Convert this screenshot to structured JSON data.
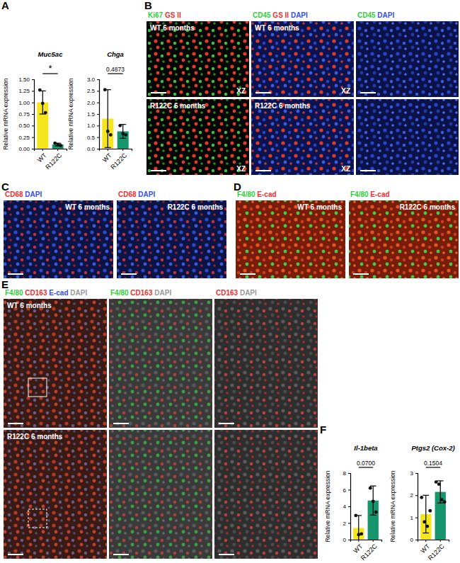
{
  "chart_data": [
    {
      "type": "bar",
      "title": "Muc5ac",
      "ylabel": "Relative mRNA expression",
      "categories": [
        "WT",
        "R122C"
      ],
      "values": [
        1.0,
        0.09
      ],
      "errors": [
        0.25,
        0.03
      ],
      "points": [
        [
          1.27,
          0.98,
          0.78
        ],
        [
          0.12,
          0.09,
          0.07
        ]
      ],
      "colors": [
        "#f4e51c",
        "#17956c"
      ],
      "ylim": [
        0,
        1.5
      ],
      "yticks": [
        {
          "value": 0,
          "label": "0.00"
        },
        {
          "value": 0.25,
          "label": "0.25"
        },
        {
          "value": 0.5,
          "label": "0.50"
        },
        {
          "value": 0.75,
          "label": "0.75"
        },
        {
          "value": 1,
          "label": "1.00"
        },
        {
          "value": 1.25,
          "label": "1.25"
        },
        {
          "value": 1.5,
          "label": "1.50"
        }
      ],
      "annotation": "*"
    },
    {
      "type": "bar",
      "title": "Chga",
      "ylabel": "Relative mRNA expression",
      "categories": [
        "WT",
        "R122C"
      ],
      "values": [
        1.3,
        0.75
      ],
      "errors": [
        1.25,
        0.3
      ],
      "points": [
        [
          2.55,
          0.75,
          0.6
        ],
        [
          1.0,
          0.65,
          0.6
        ]
      ],
      "colors": [
        "#f4e51c",
        "#17956c"
      ],
      "ylim": [
        0,
        3
      ],
      "yticks": [
        {
          "value": 0,
          "label": "0.0"
        },
        {
          "value": 0.5,
          "label": "0.5"
        },
        {
          "value": 1,
          "label": "1.0"
        },
        {
          "value": 1.5,
          "label": "1.5"
        },
        {
          "value": 2,
          "label": "2.0"
        },
        {
          "value": 2.5,
          "label": "2.5"
        },
        {
          "value": 3,
          "label": "3.0"
        }
      ],
      "annotation": "0.4873"
    },
    {
      "type": "bar",
      "title": "Il-1beta",
      "ylabel": "Relative mRNA expression",
      "categories": [
        "WT",
        "R122C"
      ],
      "values": [
        1.4,
        4.7
      ],
      "errors": [
        1.5,
        1.75
      ],
      "points": [
        [
          2.9,
          0.6,
          0.7
        ],
        [
          6.2,
          4.6,
          3.3
        ]
      ],
      "colors": [
        "#f4e51c",
        "#17956c"
      ],
      "ylim": [
        0,
        8
      ],
      "yticks": [
        0,
        2,
        4,
        6,
        8
      ],
      "annotation": "0.0700"
    },
    {
      "type": "bar",
      "title": "Ptgs2 (Cox-2)",
      "ylabel": "Relative mRNA expression",
      "categories": [
        "WT",
        "R122C"
      ],
      "values": [
        1.15,
        2.15
      ],
      "errors": [
        0.85,
        0.5
      ],
      "points": [
        [
          1.9,
          0.8,
          0.6,
          1.3
        ],
        [
          2.6,
          2.5,
          1.8,
          1.7
        ]
      ],
      "colors": [
        "#f4e51c",
        "#17956c"
      ],
      "ylim": [
        0,
        3
      ],
      "yticks": [
        0,
        1,
        2,
        3
      ],
      "annotation": "0.1504"
    }
  ],
  "panel_letters": [
    "A",
    "B",
    "C",
    "D",
    "E",
    "F"
  ],
  "image_panels": [
    {
      "letter": "B",
      "headers": [
        [
          {
            "text": "Ki67",
            "color": "#2fcf3a"
          },
          {
            "text": "GS II",
            "color": "#f03030"
          }
        ],
        [
          {
            "text": "CD45",
            "color": "#2fcf3a"
          },
          {
            "text": "GS II",
            "color": "#f03030"
          },
          {
            "text": "DAPI",
            "color": "#3050f0"
          }
        ],
        [
          {
            "text": "CD45",
            "color": "#2fcf3a"
          },
          {
            "text": "DAPI",
            "color": "#3050f0"
          }
        ]
      ],
      "cells": [
        [
          {
            "label": "WT 6 months",
            "tag": "XZ"
          },
          {
            "label": "WT 6 months",
            "tag": "XZ"
          },
          null
        ],
        [
          {
            "label": "R122C 6 months",
            "tag": "XZ"
          },
          {
            "label": "R122C 6 months",
            "tag": "XZ"
          },
          null
        ]
      ]
    },
    {
      "letter": "C",
      "headers": [
        [
          {
            "text": "CD68",
            "color": "#f03030"
          },
          {
            "text": "DAPI",
            "color": "#3050f0"
          }
        ],
        [
          {
            "text": "CD68",
            "color": "#f03030"
          },
          {
            "text": "DAPI",
            "color": "#3050f0"
          }
        ]
      ],
      "cells": [
        [
          {
            "label": "WT 6 months"
          },
          {
            "label": "R122C 6 months"
          }
        ]
      ]
    },
    {
      "letter": "D",
      "headers": [
        [
          {
            "text": "F4/80",
            "color": "#2fcf3a"
          },
          {
            "text": "E-cad",
            "color": "#f03030"
          }
        ],
        [
          {
            "text": "F4/80",
            "color": "#2fcf3a"
          },
          {
            "text": "E-cad",
            "color": "#f03030"
          }
        ]
      ],
      "cells": [
        [
          {
            "label": "WT 6 months"
          },
          {
            "label": "R122C 6 months"
          }
        ]
      ]
    },
    {
      "letter": "E",
      "headers": [
        [
          {
            "text": "F4/80",
            "color": "#2fcf3a"
          },
          {
            "text": "CD163",
            "color": "#f03030"
          },
          {
            "text": "E-cad",
            "color": "#3050f0"
          },
          {
            "text": "DAPI",
            "color": "#999999"
          }
        ],
        [
          {
            "text": "F4/80",
            "color": "#2fcf3a"
          },
          {
            "text": "CD163",
            "color": "#f03030"
          },
          {
            "text": "DAPI",
            "color": "#999999"
          }
        ],
        [
          {
            "text": "CD163",
            "color": "#f03030"
          },
          {
            "text": "DAPI",
            "color": "#999999"
          }
        ]
      ],
      "cells": [
        [
          {
            "label": "WT 6 months"
          },
          null,
          null
        ],
        [
          {
            "label": "R122C 6 months"
          },
          null,
          null
        ]
      ]
    }
  ]
}
